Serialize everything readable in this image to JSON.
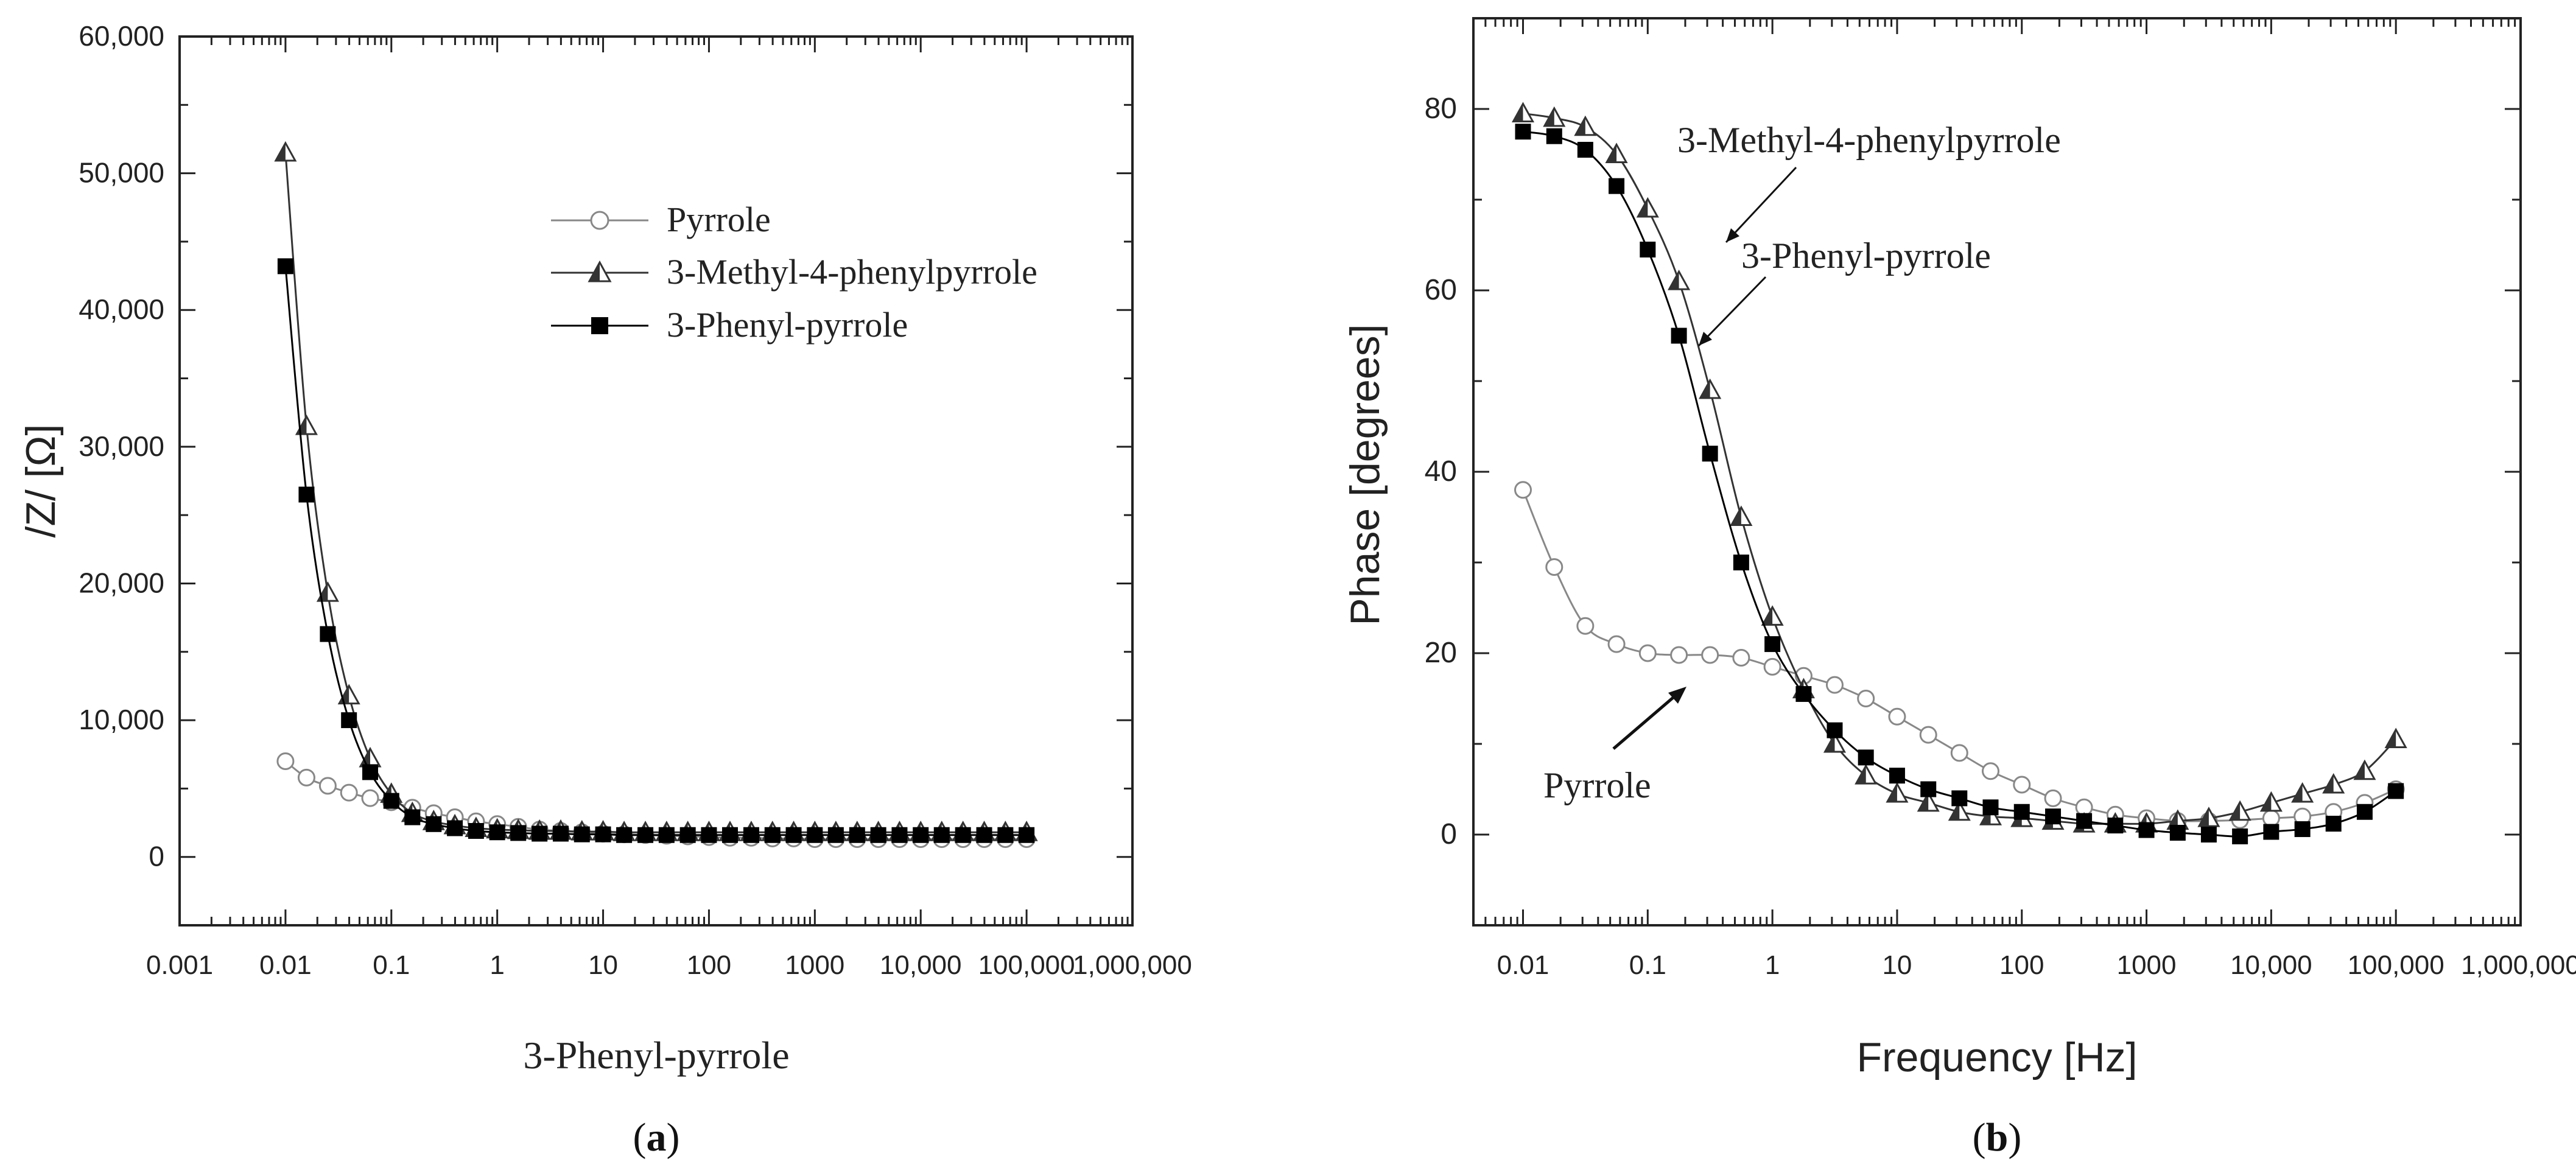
{
  "chart_data": [
    {
      "panel": "a",
      "panel_label_prefix": "(",
      "panel_label_letter": "a",
      "panel_label_suffix": ")",
      "type": "line",
      "title": "",
      "xlabel": "3-Phenyl-pyrrole",
      "ylabel": "/Z/ [Ω]",
      "x_scale": "log",
      "xlim": [
        0.001,
        1000000
      ],
      "ylim": [
        -5000,
        60000
      ],
      "x_ticks": [
        0.001,
        0.01,
        0.1,
        1,
        10,
        100,
        1000,
        10000,
        100000,
        1000000
      ],
      "x_tick_labels": [
        "0.001",
        "0.01",
        "0.1",
        "1",
        "10",
        "100",
        "1000",
        "10,000",
        "100,000",
        "1,000,000"
      ],
      "y_ticks": [
        0,
        10000,
        20000,
        30000,
        40000,
        50000,
        60000
      ],
      "y_tick_labels": [
        "0",
        "10,000",
        "20,000",
        "30,000",
        "40,000",
        "50,000",
        "60,000"
      ],
      "legend_position": "upper-center",
      "series": [
        {
          "name": "Pyrrole",
          "marker": "circle-open",
          "color": "#888888",
          "x": [
            0.01,
            0.0158,
            0.0251,
            0.0398,
            0.0631,
            0.1,
            0.158,
            0.251,
            0.398,
            0.631,
            1,
            1.58,
            2.51,
            3.98,
            6.31,
            10,
            15.8,
            25.1,
            39.8,
            63.1,
            100,
            158,
            251,
            398,
            631,
            1000,
            1580,
            2510,
            3980,
            6310,
            10000,
            15800,
            25100,
            39800,
            63100,
            100000
          ],
          "y": [
            7000,
            5800,
            5200,
            4700,
            4300,
            4000,
            3600,
            3200,
            2900,
            2600,
            2400,
            2200,
            2000,
            1900,
            1800,
            1700,
            1650,
            1600,
            1550,
            1500,
            1450,
            1400,
            1400,
            1350,
            1350,
            1300,
            1300,
            1300,
            1300,
            1300,
            1300,
            1300,
            1300,
            1300,
            1300,
            1300
          ]
        },
        {
          "name": "3-Methyl-4-phenylpyrrole",
          "marker": "triangle-half",
          "color": "#333333",
          "x": [
            0.01,
            0.0158,
            0.0251,
            0.0398,
            0.0631,
            0.1,
            0.158,
            0.251,
            0.398,
            0.631,
            1,
            1.58,
            2.51,
            3.98,
            6.31,
            10,
            15.8,
            25.1,
            39.8,
            63.1,
            100,
            158,
            251,
            398,
            631,
            1000,
            1580,
            2510,
            3980,
            6310,
            10000,
            15800,
            25100,
            39800,
            63100,
            100000
          ],
          "y": [
            51500,
            31500,
            19300,
            11800,
            7200,
            4600,
            3200,
            2600,
            2300,
            2100,
            2000,
            1950,
            1900,
            1900,
            1850,
            1850,
            1800,
            1800,
            1800,
            1800,
            1800,
            1800,
            1800,
            1800,
            1800,
            1800,
            1800,
            1800,
            1800,
            1800,
            1800,
            1800,
            1800,
            1800,
            1800,
            1800
          ]
        },
        {
          "name": "3-Phenyl-pyrrole",
          "marker": "square-filled",
          "color": "#000000",
          "x": [
            0.01,
            0.0158,
            0.0251,
            0.0398,
            0.0631,
            0.1,
            0.158,
            0.251,
            0.398,
            0.631,
            1,
            1.58,
            2.51,
            3.98,
            6.31,
            10,
            15.8,
            25.1,
            39.8,
            63.1,
            100,
            158,
            251,
            398,
            631,
            1000,
            1580,
            2510,
            3980,
            6310,
            10000,
            15800,
            25100,
            39800,
            63100,
            100000
          ],
          "y": [
            43200,
            26500,
            16300,
            10000,
            6200,
            4100,
            2900,
            2400,
            2100,
            1900,
            1800,
            1750,
            1700,
            1700,
            1650,
            1650,
            1600,
            1600,
            1600,
            1600,
            1600,
            1600,
            1600,
            1600,
            1600,
            1600,
            1600,
            1600,
            1600,
            1600,
            1600,
            1600,
            1600,
            1600,
            1600,
            1600
          ]
        }
      ]
    },
    {
      "panel": "b",
      "panel_label_prefix": "(",
      "panel_label_letter": "b",
      "panel_label_suffix": ")",
      "type": "line",
      "title": "",
      "xlabel": "Frequency [Hz]",
      "ylabel": "Phase [degrees]",
      "x_scale": "log",
      "xlim": [
        0.004,
        1000000
      ],
      "ylim": [
        -10,
        90
      ],
      "x_ticks": [
        0.01,
        0.1,
        1,
        10,
        100,
        1000,
        10000,
        100000,
        1000000
      ],
      "x_tick_labels": [
        "0.01",
        "0.1",
        "1",
        "10",
        "100",
        "1000",
        "10,000",
        "100,000",
        "1,000,000"
      ],
      "y_ticks": [
        0,
        20,
        40,
        60,
        80
      ],
      "y_tick_labels": [
        "0",
        "20",
        "40",
        "60",
        "80"
      ],
      "annotations": [
        {
          "text": "3-Methyl-4-phenylpyrrole",
          "target_x": 0.2,
          "target_y": 64
        },
        {
          "text": "3-Phenyl-pyrrole",
          "target_x": 0.17,
          "target_y": 54
        },
        {
          "text": "Pyrrole",
          "target_x": 0.3,
          "target_y": 16
        }
      ],
      "series": [
        {
          "name": "Pyrrole",
          "marker": "circle-open",
          "color": "#888888",
          "x": [
            0.01,
            0.0178,
            0.0316,
            0.0562,
            0.1,
            0.178,
            0.316,
            0.562,
            1,
            1.78,
            3.16,
            5.62,
            10,
            17.8,
            31.6,
            56.2,
            100,
            178,
            316,
            562,
            1000,
            1780,
            3160,
            5620,
            10000,
            17800,
            31600,
            56200,
            100000
          ],
          "y": [
            38,
            29.5,
            23,
            21,
            20,
            19.8,
            19.8,
            19.5,
            18.5,
            17.5,
            16.5,
            15,
            13,
            11,
            9,
            7,
            5.5,
            4,
            3,
            2.2,
            1.8,
            1.5,
            1.5,
            1.6,
            1.8,
            2,
            2.5,
            3.5,
            5
          ]
        },
        {
          "name": "3-Methyl-4-phenylpyrrole",
          "marker": "triangle-half",
          "color": "#333333",
          "x": [
            0.01,
            0.0178,
            0.0316,
            0.0562,
            0.1,
            0.178,
            0.316,
            0.562,
            1,
            1.78,
            3.16,
            5.62,
            10,
            17.8,
            31.6,
            56.2,
            100,
            178,
            316,
            562,
            1000,
            1780,
            3160,
            5620,
            10000,
            17800,
            31600,
            56200,
            100000
          ],
          "y": [
            79.5,
            79,
            78,
            75,
            69,
            61,
            49,
            35,
            24,
            16,
            10,
            6.5,
            4.5,
            3.5,
            2.5,
            2,
            1.8,
            1.5,
            1.2,
            1.2,
            1.2,
            1.5,
            1.8,
            2.5,
            3.5,
            4.5,
            5.5,
            7,
            10.5
          ]
        },
        {
          "name": "3-Phenyl-pyrrole",
          "marker": "square-filled",
          "color": "#000000",
          "x": [
            0.01,
            0.0178,
            0.0316,
            0.0562,
            0.1,
            0.178,
            0.316,
            0.562,
            1,
            1.78,
            3.16,
            5.62,
            10,
            17.8,
            31.6,
            56.2,
            100,
            178,
            316,
            562,
            1000,
            1780,
            3160,
            5620,
            10000,
            17800,
            31600,
            56200,
            100000
          ],
          "y": [
            77.5,
            77,
            75.5,
            71.5,
            64.5,
            55,
            42,
            30,
            21,
            15.5,
            11.5,
            8.5,
            6.5,
            5,
            4,
            3,
            2.5,
            2,
            1.5,
            1,
            0.5,
            0.2,
            0,
            -0.2,
            0.3,
            0.6,
            1.2,
            2.5,
            4.8
          ]
        }
      ]
    }
  ]
}
